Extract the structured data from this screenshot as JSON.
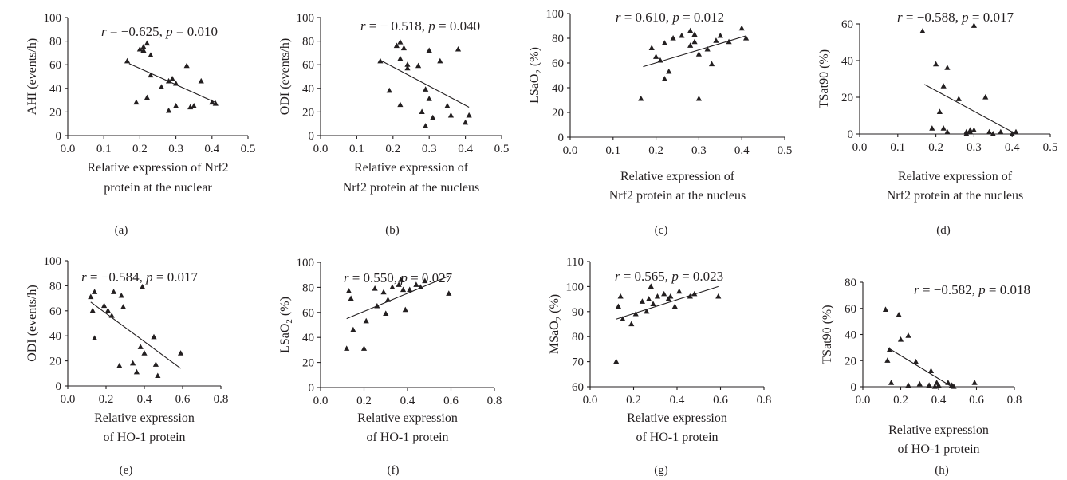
{
  "colors": {
    "ink": "#231f20",
    "background": "#ffffff"
  },
  "chart_data": [
    {
      "panel": "(a)",
      "type": "scatter",
      "ylabel": "AHI (events/h)",
      "ylabel_sub": "",
      "xlabel": [
        "Relative expression of Nrf2",
        "protein at the nuclear"
      ],
      "annotation": {
        "r": "−0.625",
        "p": "0.010"
      },
      "xlim": [
        0,
        0.5
      ],
      "ylim": [
        0,
        100
      ],
      "xticks": [
        "0.0",
        "0.1",
        "0.2",
        "0.3",
        "0.4",
        "0.5"
      ],
      "yticks": [
        "0",
        "20",
        "40",
        "60",
        "80",
        "100"
      ],
      "trendline": {
        "x": [
          0.17,
          0.41
        ],
        "y": [
          61,
          28
        ]
      },
      "points": [
        [
          0.165,
          63
        ],
        [
          0.19,
          28
        ],
        [
          0.2,
          73
        ],
        [
          0.21,
          72
        ],
        [
          0.21,
          75
        ],
        [
          0.22,
          78
        ],
        [
          0.22,
          32
        ],
        [
          0.23,
          68
        ],
        [
          0.23,
          51
        ],
        [
          0.26,
          41
        ],
        [
          0.28,
          46
        ],
        [
          0.28,
          21
        ],
        [
          0.29,
          48
        ],
        [
          0.3,
          44
        ],
        [
          0.3,
          25
        ],
        [
          0.33,
          59
        ],
        [
          0.34,
          24
        ],
        [
          0.35,
          25
        ],
        [
          0.37,
          46
        ],
        [
          0.4,
          28
        ],
        [
          0.41,
          27
        ]
      ]
    },
    {
      "panel": "(b)",
      "type": "scatter",
      "ylabel": "ODI (events/h)",
      "ylabel_sub": "",
      "xlabel": [
        "Relative expression of",
        "Nrf2 protein at the nucleus"
      ],
      "annotation": {
        "r": "− 0.518",
        "p": "0.040"
      },
      "xlim": [
        0,
        0.5
      ],
      "ylim": [
        0,
        100
      ],
      "xticks": [
        "0.0",
        "0.1",
        "0.2",
        "0.3",
        "0.4",
        "0.5"
      ],
      "yticks": [
        "0",
        "20",
        "40",
        "60",
        "80",
        "100"
      ],
      "trendline": {
        "x": [
          0.17,
          0.41
        ],
        "y": [
          63,
          24
        ]
      },
      "points": [
        [
          0.165,
          63
        ],
        [
          0.19,
          38
        ],
        [
          0.21,
          76
        ],
        [
          0.22,
          79
        ],
        [
          0.22,
          65
        ],
        [
          0.23,
          74
        ],
        [
          0.22,
          26
        ],
        [
          0.24,
          57
        ],
        [
          0.24,
          60
        ],
        [
          0.27,
          59
        ],
        [
          0.28,
          20
        ],
        [
          0.29,
          39
        ],
        [
          0.29,
          8
        ],
        [
          0.3,
          31
        ],
        [
          0.3,
          72
        ],
        [
          0.31,
          15
        ],
        [
          0.33,
          63
        ],
        [
          0.35,
          25
        ],
        [
          0.36,
          17
        ],
        [
          0.38,
          73
        ],
        [
          0.4,
          11
        ],
        [
          0.41,
          17
        ]
      ]
    },
    {
      "panel": "(c)",
      "type": "scatter",
      "ylabel": "LSaO",
      "ylabel_sub": "2",
      "xlabel": [
        "Relative expression of",
        "Nrf2 protein at the nucleus"
      ],
      "annotation": {
        "r": "0.610",
        "p": "0.012"
      },
      "xlim": [
        0,
        0.5
      ],
      "ylim": [
        0,
        100
      ],
      "xticks": [
        "0.0",
        "0.1",
        "0.2",
        "0.3",
        "0.4",
        "0.5"
      ],
      "yticks": [
        "0",
        "20",
        "40",
        "60",
        "80",
        "100"
      ],
      "trendline": {
        "x": [
          0.17,
          0.41
        ],
        "y": [
          57,
          82
        ]
      },
      "points": [
        [
          0.165,
          31
        ],
        [
          0.19,
          72
        ],
        [
          0.2,
          65
        ],
        [
          0.21,
          62
        ],
        [
          0.22,
          76
        ],
        [
          0.22,
          47
        ],
        [
          0.23,
          53
        ],
        [
          0.24,
          80
        ],
        [
          0.26,
          82
        ],
        [
          0.28,
          86
        ],
        [
          0.28,
          74
        ],
        [
          0.29,
          83
        ],
        [
          0.29,
          77
        ],
        [
          0.3,
          67
        ],
        [
          0.3,
          31
        ],
        [
          0.32,
          71
        ],
        [
          0.33,
          59
        ],
        [
          0.34,
          78
        ],
        [
          0.35,
          82
        ],
        [
          0.37,
          77
        ],
        [
          0.4,
          88
        ],
        [
          0.41,
          80
        ]
      ]
    },
    {
      "panel": "(d)",
      "type": "scatter",
      "ylabel": "TSat90 (%)",
      "ylabel_sub": "",
      "xlabel": [
        "Relative expression of",
        "Nrf2 protein at the nucleus"
      ],
      "annotation": {
        "r": "−0.588",
        "p": "0.017"
      },
      "xlim": [
        0,
        0.5
      ],
      "ylim": [
        0,
        60
      ],
      "xticks": [
        "0.0",
        "0.1",
        "0.2",
        "0.3",
        "0.4",
        "0.5"
      ],
      "yticks": [
        "0",
        "20",
        "40",
        "60"
      ],
      "trendline": {
        "x": [
          0.17,
          0.41
        ],
        "y": [
          27,
          0
        ]
      },
      "points": [
        [
          0.165,
          56
        ],
        [
          0.19,
          3
        ],
        [
          0.2,
          38
        ],
        [
          0.21,
          12
        ],
        [
          0.22,
          26
        ],
        [
          0.23,
          36
        ],
        [
          0.22,
          3
        ],
        [
          0.23,
          1
        ],
        [
          0.26,
          19
        ],
        [
          0.28,
          1
        ],
        [
          0.28,
          0
        ],
        [
          0.29,
          2
        ],
        [
          0.29,
          1
        ],
        [
          0.3,
          59
        ],
        [
          0.3,
          2
        ],
        [
          0.33,
          20
        ],
        [
          0.34,
          1
        ],
        [
          0.35,
          0
        ],
        [
          0.37,
          1
        ],
        [
          0.4,
          0
        ],
        [
          0.41,
          1
        ]
      ]
    },
    {
      "panel": "(e)",
      "type": "scatter",
      "ylabel": "ODI (events/h)",
      "ylabel_sub": "",
      "xlabel": [
        "Relative expression",
        "of HO-1 protein"
      ],
      "annotation": {
        "r": "−0.584",
        "p": "0.017"
      },
      "xlim": [
        0,
        0.8
      ],
      "ylim": [
        0,
        100
      ],
      "xticks": [
        "0.0",
        "0.2",
        "0.4",
        "0.6",
        "0.8"
      ],
      "yticks": [
        "0",
        "20",
        "40",
        "60",
        "80",
        "100"
      ],
      "trendline": {
        "x": [
          0.12,
          0.59
        ],
        "y": [
          67,
          14
        ]
      },
      "points": [
        [
          0.12,
          71
        ],
        [
          0.13,
          60
        ],
        [
          0.14,
          75
        ],
        [
          0.14,
          38
        ],
        [
          0.19,
          64
        ],
        [
          0.21,
          60
        ],
        [
          0.23,
          56
        ],
        [
          0.24,
          75
        ],
        [
          0.27,
          16
        ],
        [
          0.28,
          72
        ],
        [
          0.29,
          63
        ],
        [
          0.34,
          18
        ],
        [
          0.36,
          11
        ],
        [
          0.38,
          31
        ],
        [
          0.39,
          79
        ],
        [
          0.4,
          26
        ],
        [
          0.45,
          39
        ],
        [
          0.46,
          17
        ],
        [
          0.47,
          8
        ],
        [
          0.59,
          26
        ]
      ]
    },
    {
      "panel": "(f)",
      "type": "scatter",
      "ylabel": "LSaO",
      "ylabel_sub": "2",
      "xlabel": [
        "Relative expression",
        "of HO-1 protein"
      ],
      "annotation": {
        "r": "0.550",
        "p": "0.027"
      },
      "xlim": [
        0,
        0.8
      ],
      "ylim": [
        0,
        100
      ],
      "xticks": [
        "0.0",
        "0.2",
        "0.4",
        "0.6",
        "0.8"
      ],
      "yticks": [
        "0",
        "20",
        "40",
        "60",
        "80",
        "100"
      ],
      "trendline": {
        "x": [
          0.12,
          0.59
        ],
        "y": [
          55,
          89
        ]
      },
      "points": [
        [
          0.12,
          31
        ],
        [
          0.13,
          77
        ],
        [
          0.14,
          71
        ],
        [
          0.15,
          46
        ],
        [
          0.2,
          31
        ],
        [
          0.21,
          53
        ],
        [
          0.25,
          79
        ],
        [
          0.26,
          65
        ],
        [
          0.29,
          76
        ],
        [
          0.3,
          59
        ],
        [
          0.31,
          70
        ],
        [
          0.33,
          80
        ],
        [
          0.36,
          82
        ],
        [
          0.37,
          86
        ],
        [
          0.38,
          78
        ],
        [
          0.39,
          62
        ],
        [
          0.41,
          78
        ],
        [
          0.44,
          82
        ],
        [
          0.46,
          80
        ],
        [
          0.48,
          85
        ],
        [
          0.59,
          75
        ]
      ]
    },
    {
      "panel": "(g)",
      "type": "scatter",
      "ylabel": "MSaO",
      "ylabel_sub": "2",
      "xlabel": [
        "Relative expression",
        "of HO-1 protein"
      ],
      "annotation": {
        "r": "0.565",
        "p": "0.023"
      },
      "xlim": [
        0,
        0.8
      ],
      "ylim": [
        60,
        110
      ],
      "xticks": [
        "0.0",
        "0.2",
        "0.4",
        "0.6",
        "0.8"
      ],
      "yticks": [
        "60",
        "70",
        "80",
        "90",
        "100",
        "110"
      ],
      "trendline": {
        "x": [
          0.12,
          0.59
        ],
        "y": [
          87,
          100
        ]
      },
      "points": [
        [
          0.12,
          70
        ],
        [
          0.13,
          92
        ],
        [
          0.14,
          96
        ],
        [
          0.15,
          87
        ],
        [
          0.19,
          85
        ],
        [
          0.21,
          89
        ],
        [
          0.24,
          94
        ],
        [
          0.26,
          90
        ],
        [
          0.27,
          95
        ],
        [
          0.28,
          100
        ],
        [
          0.29,
          93
        ],
        [
          0.31,
          96
        ],
        [
          0.34,
          97
        ],
        [
          0.36,
          95
        ],
        [
          0.37,
          96
        ],
        [
          0.39,
          92
        ],
        [
          0.41,
          98
        ],
        [
          0.46,
          96
        ],
        [
          0.48,
          97
        ],
        [
          0.59,
          96
        ]
      ]
    },
    {
      "panel": "(h)",
      "type": "scatter",
      "ylabel": "TSat90 (%)",
      "ylabel_sub": "",
      "xlabel": [
        "Relative expression",
        "of HO-1 protein"
      ],
      "annotation": {
        "r": "−0.582",
        "p": "0.018"
      },
      "xlim": [
        0,
        0.8
      ],
      "ylim": [
        0,
        80
      ],
      "xticks": [
        "0.0",
        "0.2",
        "0.4",
        "0.6",
        "0.8"
      ],
      "yticks": [
        "0",
        "20",
        "40",
        "60",
        "80"
      ],
      "trendline": {
        "x": [
          0.13,
          0.47
        ],
        "y": [
          30,
          0
        ]
      },
      "points": [
        [
          0.12,
          59
        ],
        [
          0.13,
          20
        ],
        [
          0.14,
          28
        ],
        [
          0.15,
          3
        ],
        [
          0.19,
          55
        ],
        [
          0.2,
          36
        ],
        [
          0.24,
          39
        ],
        [
          0.24,
          1
        ],
        [
          0.28,
          19
        ],
        [
          0.3,
          2
        ],
        [
          0.35,
          1
        ],
        [
          0.36,
          12
        ],
        [
          0.38,
          0
        ],
        [
          0.39,
          3
        ],
        [
          0.4,
          1
        ],
        [
          0.45,
          3
        ],
        [
          0.47,
          1
        ],
        [
          0.48,
          0
        ],
        [
          0.59,
          3
        ]
      ]
    }
  ]
}
